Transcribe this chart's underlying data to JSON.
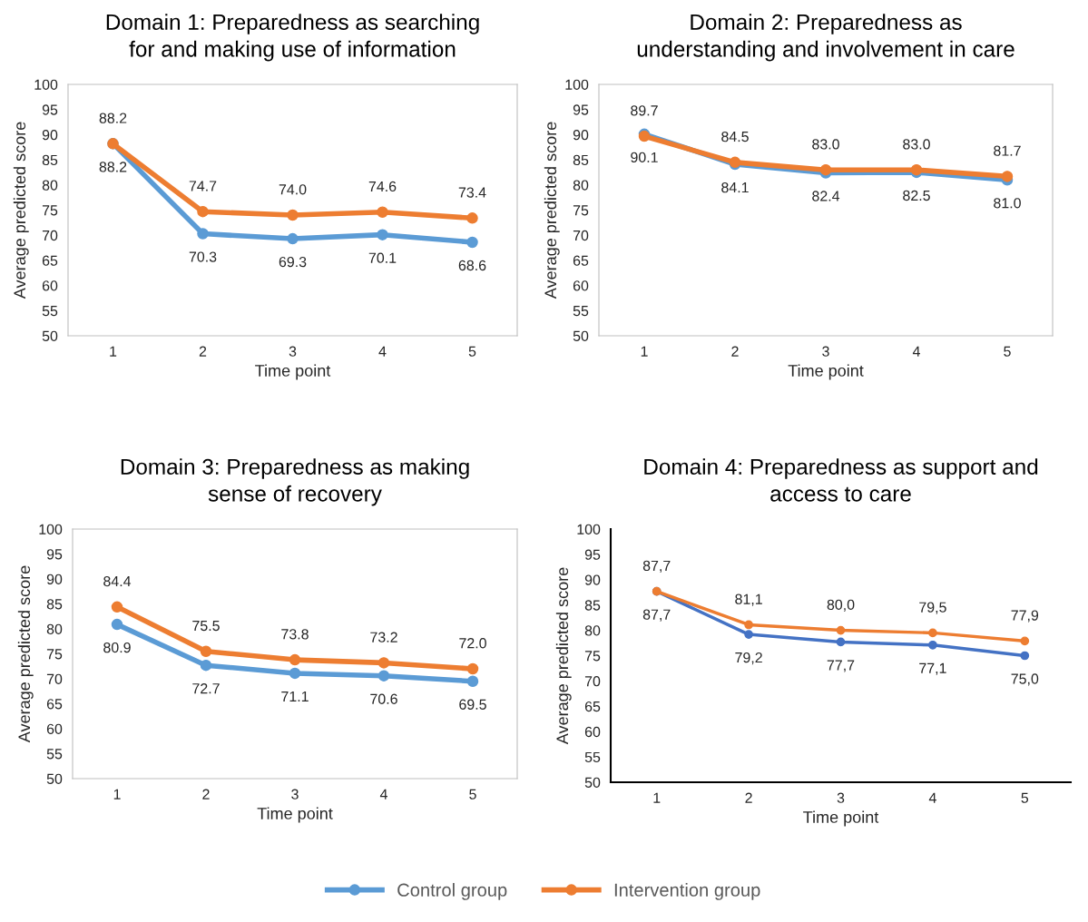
{
  "chart_data": [
    {
      "type": "line",
      "title": "Domain 1: Preparedness as searching\nfor and making use of information",
      "xlabel": "Time point",
      "ylabel": "Average predicted score",
      "categories": [
        "1",
        "2",
        "3",
        "4",
        "5"
      ],
      "ylim": [
        50,
        100
      ],
      "yticks": [
        50,
        55,
        60,
        65,
        70,
        75,
        80,
        85,
        90,
        95,
        100
      ],
      "grid": false,
      "marker": "circle",
      "legend": "bottom",
      "series": [
        {
          "name": "Control group",
          "color": "#5b9bd5",
          "values": [
            88.2,
            70.3,
            69.3,
            70.1,
            68.6
          ],
          "value_labels": [
            "88.2",
            "70.3",
            "69.3",
            "70.1",
            "68.6"
          ]
        },
        {
          "name": "Intervention group",
          "color": "#ed7d31",
          "values": [
            88.2,
            74.7,
            74.0,
            74.6,
            73.4
          ],
          "value_labels": [
            "88.2",
            "74.7",
            "74.0",
            "74.6",
            "73.4"
          ]
        }
      ]
    },
    {
      "type": "line",
      "title": "Domain 2: Preparedness as\nunderstanding and involvement in care",
      "xlabel": "Time point",
      "ylabel": "Average predicted score",
      "categories": [
        "1",
        "2",
        "3",
        "4",
        "5"
      ],
      "ylim": [
        50,
        100
      ],
      "yticks": [
        50,
        55,
        60,
        65,
        70,
        75,
        80,
        85,
        90,
        95,
        100
      ],
      "grid": false,
      "marker": "circle",
      "series": [
        {
          "color": "#5b9bd5",
          "values": [
            90.1,
            84.1,
            82.4,
            82.5,
            81.0
          ],
          "value_labels": [
            "90.1",
            "84.1",
            "82.4",
            "82.5",
            "81.0"
          ]
        },
        {
          "color": "#ed7d31",
          "values": [
            89.7,
            84.5,
            83.0,
            83.0,
            81.7
          ],
          "value_labels": [
            "89.7",
            "84.5",
            "83.0",
            "83.0",
            "81.7"
          ]
        }
      ]
    },
    {
      "type": "line",
      "title": "Domain 3: Preparedness as making\nsense of recovery",
      "xlabel": "Time point",
      "ylabel": "Average predicted score",
      "categories": [
        "1",
        "2",
        "3",
        "4",
        "5"
      ],
      "ylim": [
        50,
        100
      ],
      "yticks": [
        50,
        55,
        60,
        65,
        70,
        75,
        80,
        85,
        90,
        95,
        100
      ],
      "grid": false,
      "marker": "circle",
      "series": [
        {
          "color": "#5b9bd5",
          "values": [
            80.9,
            72.7,
            71.1,
            70.6,
            69.5
          ],
          "value_labels": [
            "80.9",
            "72.7",
            "71.1",
            "70.6",
            "69.5"
          ]
        },
        {
          "color": "#ed7d31",
          "values": [
            84.4,
            75.5,
            73.8,
            73.2,
            72.0
          ],
          "value_labels": [
            "84.4",
            "75.5",
            "73.8",
            "73.2",
            "72.0"
          ]
        }
      ]
    },
    {
      "type": "line",
      "title": "Domain 4: Preparedness as support and\naccess to care",
      "xlabel": "Time point",
      "ylabel": "Average predicted score",
      "categories": [
        "1",
        "2",
        "3",
        "4",
        "5"
      ],
      "ylim": [
        50,
        100
      ],
      "yticks": [
        50,
        55,
        60,
        65,
        70,
        75,
        80,
        85,
        90,
        95,
        100
      ],
      "grid": false,
      "marker": "circle",
      "series": [
        {
          "color": "#4472c4",
          "values": [
            87.7,
            79.2,
            77.7,
            77.1,
            75.0
          ],
          "value_labels": [
            "87,7",
            "79,2",
            "77,7",
            "77,1",
            "75,0"
          ]
        },
        {
          "color": "#ed7d31",
          "values": [
            87.7,
            81.1,
            80.0,
            79.5,
            77.9
          ],
          "value_labels": [
            "87,7",
            "81,1",
            "80,0",
            "79,5",
            "77,9"
          ]
        }
      ]
    }
  ]
}
